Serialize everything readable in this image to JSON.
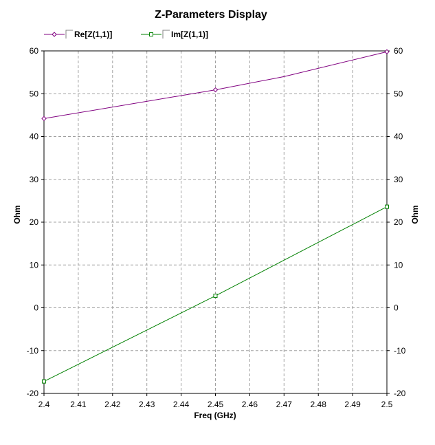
{
  "chart_data": {
    "type": "line",
    "title": "Z-Parameters Display",
    "xlabel": "Freq (GHz)",
    "ylabel": "Ohm",
    "ylabel_right": "Ohm",
    "xlim": [
      2.4,
      2.5
    ],
    "ylim": [
      -20,
      60
    ],
    "x_ticks": [
      "2.4",
      "2.41",
      "2.42",
      "2.43",
      "2.44",
      "2.45",
      "2.46",
      "2.47",
      "2.48",
      "2.49",
      "2.5"
    ],
    "y_ticks": [
      "60",
      "50",
      "40",
      "30",
      "20",
      "10",
      "0",
      "-10",
      "-20"
    ],
    "grid": true,
    "legend_position": "top-left",
    "series": [
      {
        "name": "Re[Z(1,1)]",
        "color": "#800080",
        "marker": "diamond",
        "x": [
          2.4,
          2.45,
          2.47,
          2.5
        ],
        "y": [
          44.2,
          50.9,
          54.0,
          59.8
        ],
        "marker_x": [
          2.4,
          2.45,
          2.5
        ]
      },
      {
        "name": "Im[Z(1,1)]",
        "color": "#008000",
        "marker": "square",
        "x": [
          2.4,
          2.45,
          2.5
        ],
        "y": [
          -17.2,
          2.8,
          23.6
        ],
        "marker_x": [
          2.4,
          2.45,
          2.5
        ]
      }
    ]
  }
}
